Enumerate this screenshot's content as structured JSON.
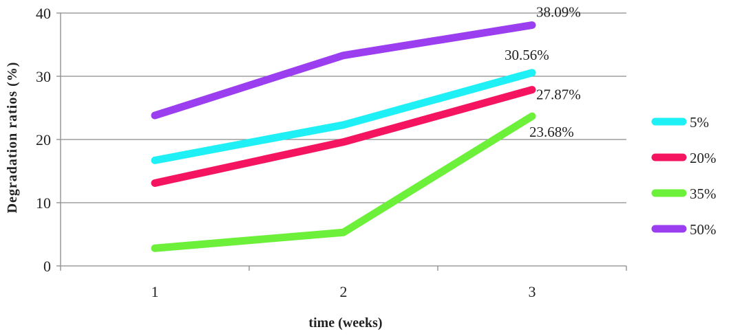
{
  "chart_data": {
    "type": "line",
    "xlabel": "time (weeks)",
    "ylabel": "Degradation ratios (%)",
    "x": [
      "1",
      "2",
      "3"
    ],
    "ylim": [
      0,
      40
    ],
    "yticks": [
      "0",
      "10",
      "20",
      "30",
      "40"
    ],
    "grid": true,
    "legend_position": "right",
    "series": [
      {
        "name": "5%",
        "color": "#1ff0f5",
        "values": [
          16.7,
          22.3,
          30.56
        ],
        "end_label": "30.56%"
      },
      {
        "name": "20%",
        "color": "#f5145f",
        "values": [
          13.1,
          19.6,
          27.87
        ],
        "end_label": "27.87%"
      },
      {
        "name": "35%",
        "color": "#6cf03a",
        "values": [
          2.8,
          5.3,
          23.68
        ],
        "end_label": "23.68%"
      },
      {
        "name": "50%",
        "color": "#9b3ef0",
        "values": [
          23.8,
          33.3,
          38.09
        ],
        "end_label": "38.09%"
      }
    ]
  }
}
